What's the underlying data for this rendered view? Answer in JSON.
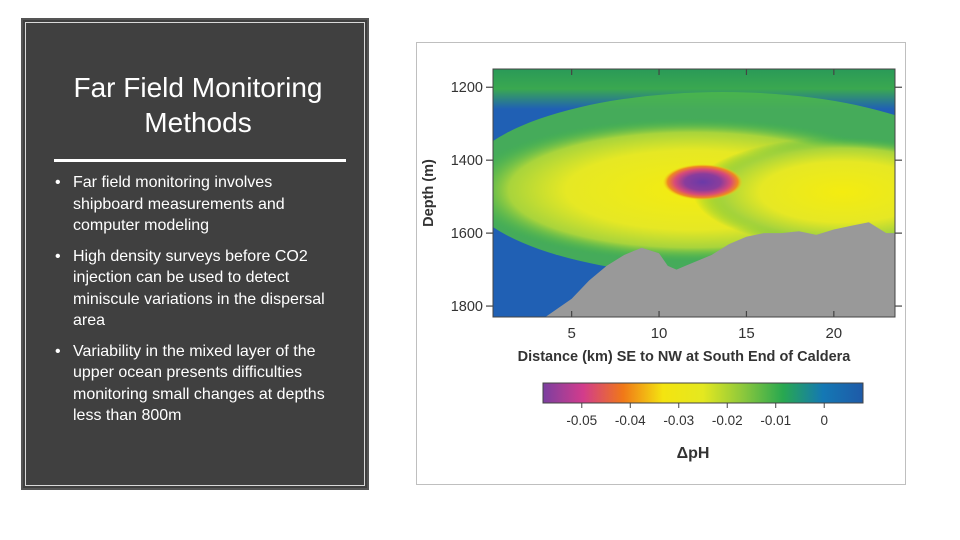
{
  "slide": {
    "title": "Far Field Monitoring Methods",
    "bullets": [
      "Far field monitoring involves shipboard measurements and computer modeling",
      "High density surveys before CO2 injection can be used to detect miniscule variations in the dispersal area",
      "Variability in the mixed layer of the upper ocean presents difficulties monitoring small changes at depths less than 800m"
    ]
  },
  "chart_data": {
    "type": "heatmap",
    "xlabel": "Distance (km) SE to NW at South End of Caldera",
    "ylabel": "Depth (m)",
    "x_ticks": [
      "5",
      "10",
      "15",
      "20"
    ],
    "x_tick_values": [
      5,
      10,
      15,
      20
    ],
    "y_ticks": [
      "1200",
      "1400",
      "1600",
      "1800"
    ],
    "y_tick_values": [
      1200,
      1400,
      1600,
      1800
    ],
    "xlim": [
      0.5,
      23.5
    ],
    "ylim": [
      1150,
      1830
    ],
    "y_inverted": true,
    "seafloor_depth_profile": {
      "x": [
        0.5,
        3.5,
        5,
        6,
        7,
        8,
        9,
        10,
        10.5,
        11,
        11.5,
        12,
        13,
        14,
        15,
        16,
        17,
        18,
        19,
        20,
        21,
        22,
        23,
        23.5
      ],
      "depth": [
        1830,
        1830,
        1780,
        1730,
        1690,
        1660,
        1640,
        1655,
        1690,
        1700,
        1690,
        1680,
        1660,
        1630,
        1610,
        1600,
        1600,
        1595,
        1605,
        1590,
        1580,
        1570,
        1600,
        1600
      ]
    },
    "seafloor_color": "#999999",
    "anomaly_core": {
      "x": 12.5,
      "depth": 1460,
      "value": -0.05
    },
    "colorbar": {
      "label": "ΔpH",
      "ticks": [
        "-0.05",
        "-0.04",
        "-0.03",
        "-0.02",
        "-0.01",
        "0"
      ],
      "tick_values": [
        -0.05,
        -0.04,
        -0.03,
        -0.02,
        -0.01,
        0
      ],
      "range": [
        -0.058,
        0.008
      ],
      "colors": [
        "#7b3fa0",
        "#d23c8c",
        "#f07818",
        "#f4e410",
        "#e4e820",
        "#8cc83c",
        "#28a850",
        "#1478b4",
        "#1e5aa8"
      ]
    }
  }
}
